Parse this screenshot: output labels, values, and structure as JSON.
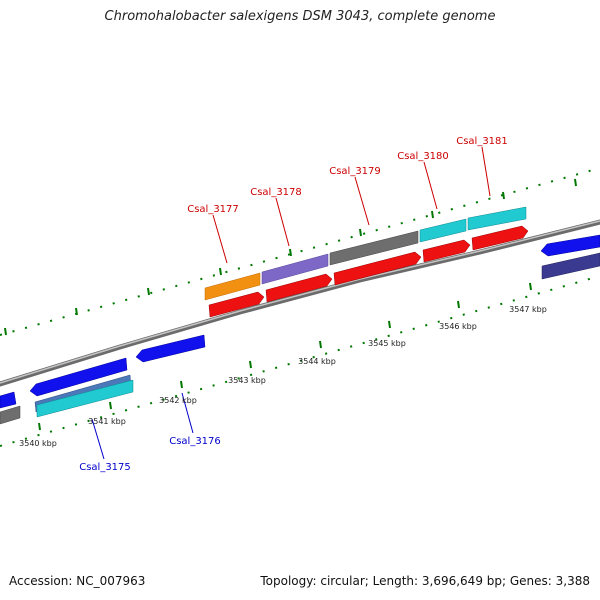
{
  "title": "Chromohalobacter salexigens DSM 3043, complete genome",
  "footer": {
    "accession": "Accession: NC_007963",
    "topology": "Topology: circular; Length: 3,696,649 bp; Genes: 3,388"
  },
  "colors": {
    "forward_label": "#cc0000",
    "reverse_label": "#0000cc",
    "tick": "#007700",
    "backbone": "#888888"
  },
  "kbp_labels": [
    "3540 kbp",
    "3541 kbp",
    "3542 kbp",
    "3543 kbp",
    "3544 kbp",
    "3545 kbp",
    "3546 kbp",
    "3547 kbp"
  ],
  "gene_labels": {
    "forward": [
      "Csal_3177",
      "Csal_3178",
      "Csal_3179",
      "Csal_3180",
      "Csal_3181"
    ],
    "reverse": [
      "Csal_3175",
      "Csal_3176"
    ]
  }
}
